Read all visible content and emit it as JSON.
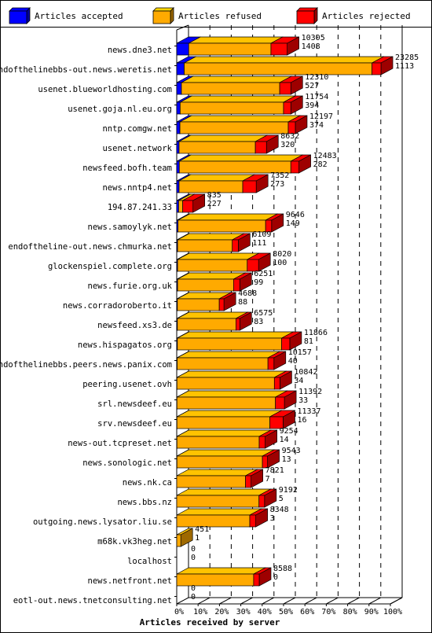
{
  "chart_data": {
    "type": "bar",
    "stacked": true,
    "orientation": "horizontal",
    "xlabel": "Articles received by server",
    "xlim": [
      0,
      100
    ],
    "x_ticks": [
      "0%",
      "10%",
      "20%",
      "30%",
      "40%",
      "50%",
      "60%",
      "70%",
      "80%",
      "90%",
      "100%"
    ],
    "grid": true,
    "legend_position": "top",
    "series": [
      {
        "name": "Articles accepted",
        "color": "#0000ff"
      },
      {
        "name": "Articles refused",
        "color": "#ffaa00"
      },
      {
        "name": "Articles rejected",
        "color": "#ff0000"
      }
    ],
    "categories": [
      "news.dne3.net",
      "endofthelinebbs-out.news.weretis.net",
      "usenet.blueworldhosting.com",
      "usenet.goja.nl.eu.org",
      "nntp.comgw.net",
      "usenet.network",
      "newsfeed.bofh.team",
      "news.nntp4.net",
      "194.87.241.33",
      "news.samoylyk.net",
      "endoftheline-out.news.chmurka.net",
      "glockenspiel.complete.org",
      "news.furie.org.uk",
      "news.corradoroberto.it",
      "newsfeed.xs3.de",
      "news.hispagatos.org",
      "endofthelinebbs.peers.news.panix.com",
      "peering.usenet.ovh",
      "srl.newsdeef.eu",
      "srv.newsdeef.eu",
      "news-out.tcpreset.net",
      "news.sonologic.net",
      "news.nk.ca",
      "news.bbs.nz",
      "outgoing.news.lysator.liu.se",
      "m68k.vk3heg.net",
      "localhost",
      "news.netfront.net",
      "eotl-out.news.tnetconsulting.net"
    ],
    "totals": [
      10305,
      23285,
      12310,
      11754,
      12197,
      8632,
      12483,
      7352,
      835,
      9646,
      6109,
      8020,
      6251,
      4688,
      6575,
      11866,
      10157,
      10842,
      11392,
      11337,
      9254,
      9543,
      7821,
      9192,
      8348,
      451,
      0,
      8588,
      0
    ],
    "second_values": [
      1408,
      1113,
      527,
      394,
      374,
      320,
      282,
      273,
      227,
      149,
      111,
      100,
      99,
      88,
      83,
      81,
      40,
      34,
      33,
      16,
      14,
      13,
      7,
      5,
      3,
      1,
      0,
      0,
      0
    ],
    "segments_pct": [
      [
        5.6,
        38.5,
        7.6
      ],
      [
        3.5,
        87.9,
        4.2
      ],
      [
        2.2,
        46.0,
        5.2
      ],
      [
        1.6,
        48.4,
        3.4
      ],
      [
        1.5,
        50.7,
        3.3
      ],
      [
        1.1,
        35.7,
        5.2
      ],
      [
        1.2,
        52.2,
        3.8
      ],
      [
        1.1,
        29.8,
        6.3
      ],
      [
        0.9,
        1.9,
        4.8
      ],
      [
        0.6,
        41.0,
        2.8
      ],
      [
        0.4,
        25.6,
        2.8
      ],
      [
        0.4,
        32.6,
        5.3
      ],
      [
        0.4,
        26.2,
        2.9
      ],
      [
        0.3,
        19.6,
        2.2
      ],
      [
        0.3,
        27.4,
        1.8
      ],
      [
        0.3,
        48.8,
        3.8
      ],
      [
        0.2,
        42.5,
        2.8
      ],
      [
        0.1,
        45.6,
        2.6
      ],
      [
        0.1,
        46.1,
        4.2
      ],
      [
        0.1,
        43.5,
        6.2
      ],
      [
        0.1,
        38.5,
        2.8
      ],
      [
        0.1,
        40.0,
        2.4
      ],
      [
        0.0,
        32.2,
        2.6
      ],
      [
        0.0,
        38.5,
        2.6
      ],
      [
        0.0,
        34.2,
        2.8
      ],
      [
        0.0,
        1.9,
        0.0
      ],
      [
        0.0,
        0.0,
        0.0
      ],
      [
        0.0,
        36.0,
        2.6
      ],
      [
        0.0,
        0.0,
        0.0
      ]
    ]
  }
}
